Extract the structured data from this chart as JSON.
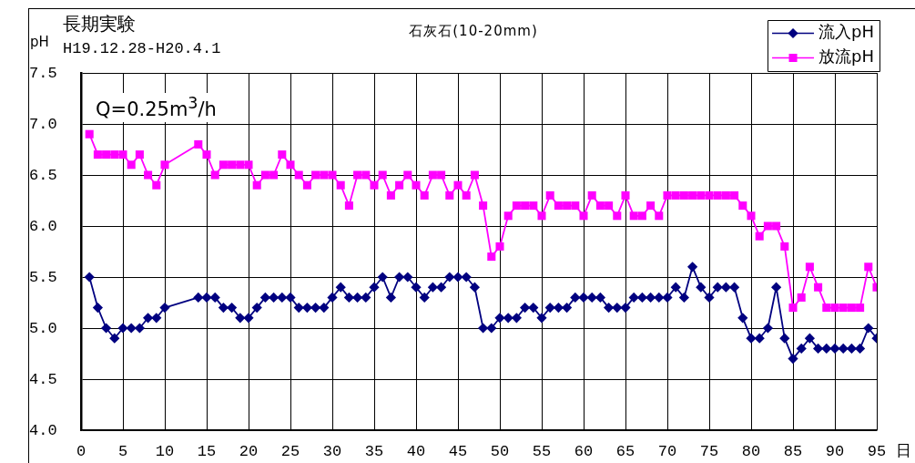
{
  "chart_data": {
    "type": "line",
    "title": "石灰石(10-20mm)",
    "ylabel": "pH",
    "xlabel": "日",
    "annotations": [
      "長期実験",
      "H19.12.28-H20.4.1",
      "Q=0.25m$^{3}$/h"
    ],
    "x": [
      1,
      2,
      3,
      4,
      5,
      6,
      7,
      8,
      9,
      10,
      14,
      15,
      16,
      17,
      18,
      19,
      20,
      21,
      22,
      23,
      24,
      25,
      26,
      27,
      28,
      29,
      30,
      31,
      32,
      33,
      34,
      35,
      36,
      37,
      38,
      39,
      40,
      41,
      42,
      43,
      44,
      45,
      46,
      47,
      48,
      49,
      50,
      51,
      52,
      53,
      54,
      55,
      56,
      57,
      58,
      59,
      60,
      61,
      62,
      63,
      64,
      65,
      66,
      67,
      68,
      69,
      70,
      71,
      72,
      73,
      74,
      75,
      76,
      77,
      78,
      79,
      80,
      81,
      82,
      83,
      84,
      85,
      86,
      87,
      88,
      89,
      90,
      91,
      92,
      93,
      94,
      95
    ],
    "series": [
      {
        "name": "流入pH",
        "color": "#000080",
        "marker": "diamond",
        "values": [
          5.5,
          5.2,
          5.0,
          4.9,
          5.0,
          5.0,
          5.0,
          5.1,
          5.1,
          5.2,
          5.3,
          5.3,
          5.3,
          5.2,
          5.2,
          5.1,
          5.1,
          5.2,
          5.3,
          5.3,
          5.3,
          5.3,
          5.2,
          5.2,
          5.2,
          5.2,
          5.3,
          5.4,
          5.3,
          5.3,
          5.3,
          5.4,
          5.5,
          5.3,
          5.5,
          5.5,
          5.4,
          5.3,
          5.4,
          5.4,
          5.5,
          5.5,
          5.5,
          5.4,
          5.0,
          5.0,
          5.1,
          5.1,
          5.1,
          5.2,
          5.2,
          5.1,
          5.2,
          5.2,
          5.2,
          5.3,
          5.3,
          5.3,
          5.3,
          5.2,
          5.2,
          5.2,
          5.3,
          5.3,
          5.3,
          5.3,
          5.3,
          5.4,
          5.3,
          5.6,
          5.4,
          5.3,
          5.4,
          5.4,
          5.4,
          5.1,
          4.9,
          4.9,
          5.0,
          5.4,
          4.9,
          4.7,
          4.8,
          4.9,
          4.8,
          4.8,
          4.8,
          4.8,
          4.8,
          4.8,
          5.0,
          4.9
        ]
      },
      {
        "name": "放流pH",
        "color": "#ff00ff",
        "marker": "square",
        "values": [
          6.9,
          6.7,
          6.7,
          6.7,
          6.7,
          6.6,
          6.7,
          6.5,
          6.4,
          6.6,
          6.8,
          6.7,
          6.5,
          6.6,
          6.6,
          6.6,
          6.6,
          6.4,
          6.5,
          6.5,
          6.7,
          6.6,
          6.5,
          6.4,
          6.5,
          6.5,
          6.5,
          6.4,
          6.2,
          6.5,
          6.5,
          6.4,
          6.5,
          6.3,
          6.4,
          6.5,
          6.4,
          6.3,
          6.5,
          6.5,
          6.3,
          6.4,
          6.3,
          6.5,
          6.2,
          5.7,
          5.8,
          6.1,
          6.2,
          6.2,
          6.2,
          6.1,
          6.3,
          6.2,
          6.2,
          6.2,
          6.1,
          6.3,
          6.2,
          6.2,
          6.1,
          6.3,
          6.1,
          6.1,
          6.2,
          6.1,
          6.3,
          6.3,
          6.3,
          6.3,
          6.3,
          6.3,
          6.3,
          6.3,
          6.3,
          6.2,
          6.1,
          5.9,
          6.0,
          6.0,
          5.8,
          5.2,
          5.3,
          5.6,
          5.4,
          5.2,
          5.2,
          5.2,
          5.2,
          5.2,
          5.6,
          5.4
        ]
      }
    ],
    "xlim": [
      0,
      95
    ],
    "xticks": [
      0,
      5,
      10,
      15,
      20,
      25,
      30,
      35,
      40,
      45,
      50,
      55,
      60,
      65,
      70,
      75,
      80,
      85,
      90,
      95
    ],
    "ylim": [
      4,
      7.5
    ],
    "yticks": [
      {
        "value": 4,
        "label": "4.0"
      },
      4.5,
      {
        "value": 5,
        "label": "5.0"
      },
      5.5,
      {
        "value": 6,
        "label": "6.0"
      },
      6.5,
      {
        "value": 7,
        "label": "7.0"
      },
      7.5
    ],
    "grid": true,
    "legend": "top right",
    "line_style": "solid"
  }
}
